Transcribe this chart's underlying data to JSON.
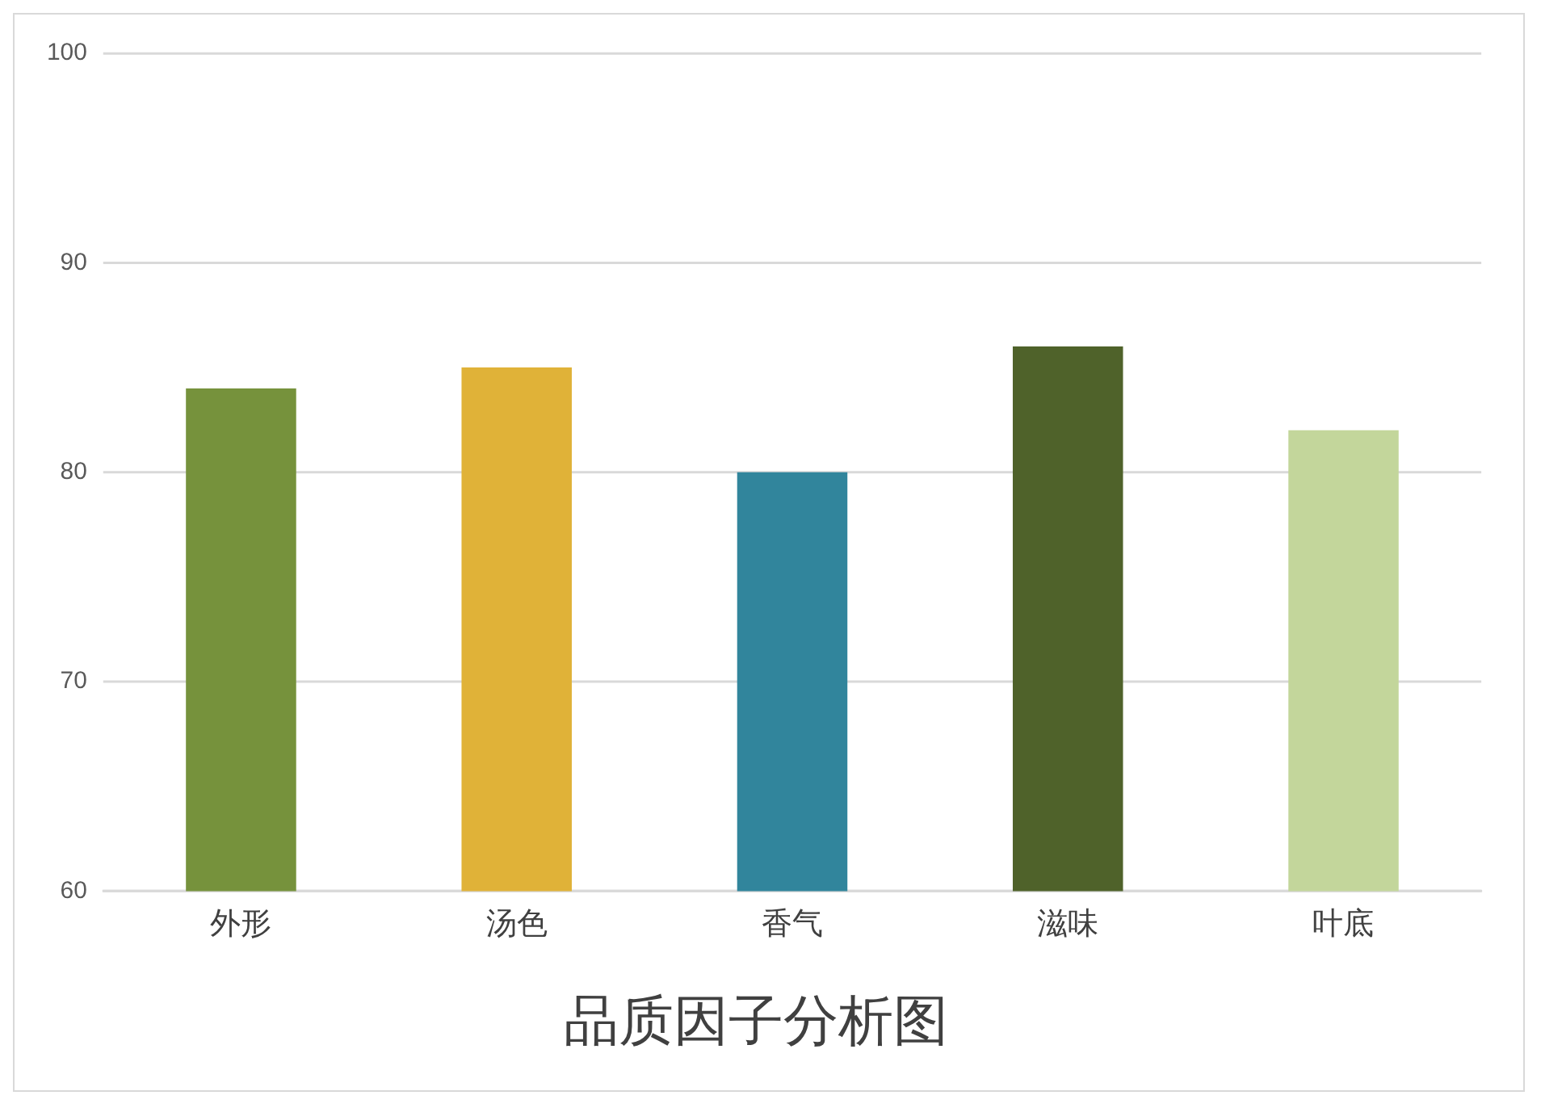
{
  "chart_data": {
    "type": "bar",
    "title": "品质因子分析图",
    "categories": [
      "外形",
      "汤色",
      "香气",
      "滋味",
      "叶底"
    ],
    "values": [
      84,
      85,
      80,
      86,
      82
    ],
    "colors": [
      "#76923c",
      "#e0b238",
      "#31859c",
      "#4f622a",
      "#c3d69b"
    ],
    "ylim": [
      60,
      100
    ],
    "yticks": [
      60,
      70,
      80,
      90,
      100
    ],
    "grid": "y",
    "legend": false
  }
}
